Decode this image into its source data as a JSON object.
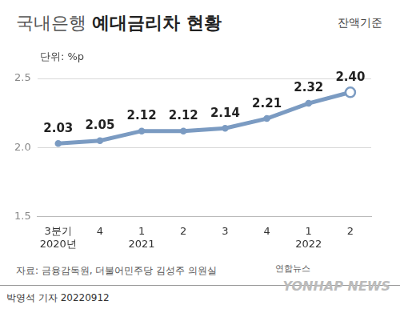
{
  "chart_data": {
    "type": "line",
    "title": "국내은행 예대금리차 현황",
    "subtitle": "잔액기준",
    "y_label": "단위: %p",
    "categories": [
      [
        "3분기",
        "2020년"
      ],
      [
        "4"
      ],
      [
        "1",
        "2021"
      ],
      [
        "2"
      ],
      [
        "3"
      ],
      [
        "4"
      ],
      [
        "1",
        "2022"
      ],
      [
        "2"
      ]
    ],
    "values": [
      2.03,
      2.05,
      2.12,
      2.12,
      2.14,
      2.21,
      2.32,
      2.4
    ],
    "value_labels": [
      "2.03",
      "2.05",
      "2.12",
      "2.12",
      "2.14",
      "2.21",
      "2.32",
      "2.40"
    ],
    "data_labels": true,
    "color": "#7b9bc2",
    "marker": "circle",
    "ylim": [
      1.5,
      2.5
    ],
    "yticks": [
      1.5,
      {
        "value": 2,
        "label": "2.0"
      },
      2.5
    ],
    "grid": true,
    "source": "자료: 금융감독원, 더불어민주당 김성주 의원실",
    "byline": "박영석 기자 20220912",
    "logo_text": [
      "연합뉴스",
      "YONHAP NEWS"
    ]
  }
}
